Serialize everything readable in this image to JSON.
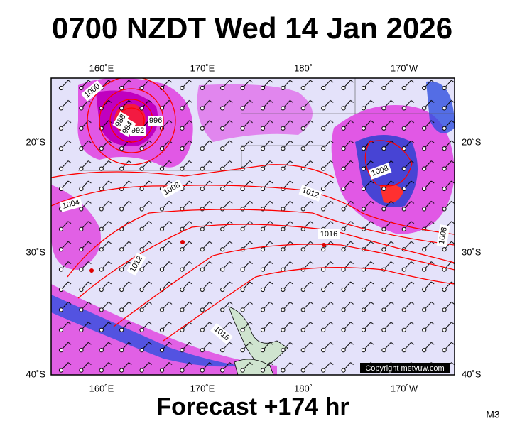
{
  "header": {
    "title": "0700 NZDT Wed 14 Jan 2026"
  },
  "footer": {
    "forecast": "Forecast +174 hr",
    "model": "M3"
  },
  "map": {
    "top_longitudes": [
      "160˚E",
      "170˚E",
      "180˚",
      "170˚W"
    ],
    "bottom_longitudes": [
      "160˚E",
      "170˚E",
      "180˚",
      "170˚W"
    ],
    "left_latitudes": [
      "20˚S",
      "30˚S",
      "40˚S"
    ],
    "right_latitudes": [
      "20˚S",
      "30˚S",
      "40˚S"
    ],
    "isobar_labels": [
      "1000",
      "996",
      "992",
      "988",
      "984",
      "1008",
      "1004",
      "1012",
      "1016",
      "1012",
      "1016",
      "1008",
      "1008"
    ],
    "copyright": "Copyright metvuw.com"
  }
}
